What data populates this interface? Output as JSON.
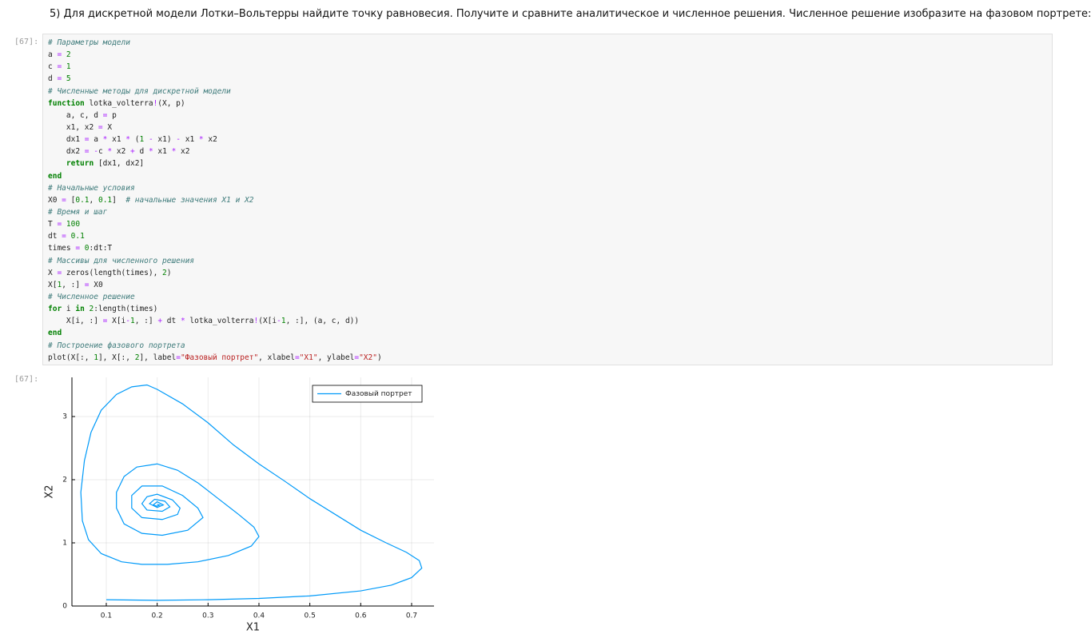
{
  "markdown": {
    "text": "5) Для дискретной модели Лотки–Вольтерры найдите точку равновесия. Получите и сравните аналитическое и численное решения. Численное решение изобразите на фазовом портрете:"
  },
  "input": {
    "prompt": "[67]:",
    "lines": [
      "# Параметры модели",
      "a = 2",
      "c = 1",
      "d = 5",
      "# Численные методы для дискретной модели",
      "function lotka_volterra!(X, p)",
      "    a, c, d = p",
      "    x1, x2 = X",
      "    dx1 = a * x1 * (1 - x1) - x1 * x2",
      "    dx2 = -c * x2 + d * x1 * x2",
      "    return [dx1, dx2]",
      "end",
      "# Начальные условия",
      "X0 = [0.1, 0.1]  # начальные значения X1 и X2",
      "# Время и шаг",
      "T = 100",
      "dt = 0.1",
      "times = 0:dt:T",
      "# Массивы для численного решения",
      "X = zeros(length(times), 2)",
      "X[1, :] = X0",
      "# Численное решение",
      "for i in 2:length(times)",
      "    X[i, :] = X[i-1, :] + dt * lotka_volterra!(X[i-1, :], (a, c, d))",
      "end",
      "# Построение фазового портрета",
      "plot(X[:, 1], X[:, 2], label=\"Фазовый портрет\", xlabel=\"X1\", ylabel=\"X2\")"
    ]
  },
  "output": {
    "prompt": "[67]:"
  },
  "chart_data": {
    "type": "line",
    "xlabel": "X1",
    "ylabel": "X2",
    "x": [
      0.1,
      0.2,
      0.3,
      0.4,
      0.5,
      0.6,
      0.66,
      0.7,
      0.72,
      0.715,
      0.69,
      0.65,
      0.6,
      0.55,
      0.5,
      0.45,
      0.4,
      0.35,
      0.3,
      0.25,
      0.2,
      0.18,
      0.15,
      0.12,
      0.09,
      0.07,
      0.057,
      0.05,
      0.053,
      0.065,
      0.09,
      0.13,
      0.17,
      0.22,
      0.28,
      0.34,
      0.385,
      0.4,
      0.39,
      0.36,
      0.32,
      0.28,
      0.24,
      0.2,
      0.16,
      0.135,
      0.12,
      0.12,
      0.135,
      0.17,
      0.21,
      0.26,
      0.29,
      0.28,
      0.25,
      0.21,
      0.17,
      0.15,
      0.15,
      0.17,
      0.21,
      0.24,
      0.245,
      0.23,
      0.2,
      0.18,
      0.17,
      0.18,
      0.21,
      0.225,
      0.215,
      0.195,
      0.185,
      0.2,
      0.212,
      0.2,
      0.192,
      0.2,
      0.205,
      0.2
    ],
    "series": [
      {
        "name": "Фазовый портрет",
        "color": "#009af9",
        "values": [
          0.1,
          0.09,
          0.1,
          0.12,
          0.16,
          0.24,
          0.33,
          0.45,
          0.6,
          0.72,
          0.85,
          1.0,
          1.2,
          1.45,
          1.7,
          1.98,
          2.25,
          2.55,
          2.9,
          3.2,
          3.43,
          3.5,
          3.47,
          3.35,
          3.1,
          2.75,
          2.3,
          1.8,
          1.35,
          1.05,
          0.83,
          0.7,
          0.66,
          0.66,
          0.7,
          0.8,
          0.95,
          1.1,
          1.25,
          1.45,
          1.7,
          1.95,
          2.15,
          2.25,
          2.2,
          2.05,
          1.8,
          1.55,
          1.3,
          1.15,
          1.12,
          1.2,
          1.4,
          1.55,
          1.75,
          1.9,
          1.9,
          1.75,
          1.55,
          1.4,
          1.37,
          1.45,
          1.55,
          1.68,
          1.77,
          1.73,
          1.62,
          1.52,
          1.5,
          1.57,
          1.66,
          1.69,
          1.62,
          1.56,
          1.6,
          1.65,
          1.6,
          1.58,
          1.6,
          1.61
        ]
      }
    ],
    "xlim": [
      0.0325,
      0.744
    ],
    "ylim": [
      0,
      3.62
    ],
    "xticks": [
      0.1,
      0.2,
      0.3,
      0.4,
      0.5,
      0.6,
      0.7
    ],
    "yticks": [
      0,
      1,
      2,
      3
    ],
    "grid": true,
    "legend": "top-right"
  }
}
